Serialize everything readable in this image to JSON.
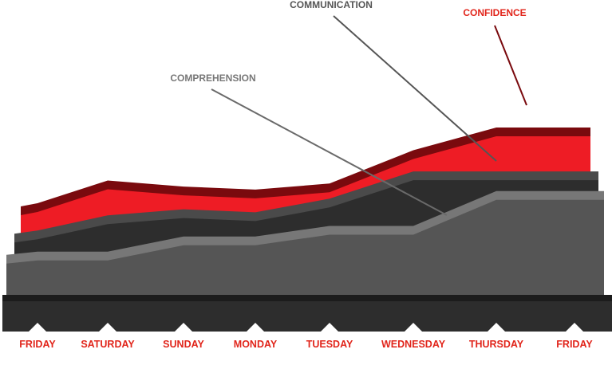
{
  "chart_data": {
    "type": "area",
    "categories": [
      "FRIDAY",
      "SATURDAY",
      "SUNDAY",
      "MONDAY",
      "TUESDAY",
      "WEDNESDAY",
      "THURSDAY",
      "FRIDAY"
    ],
    "series": [
      {
        "name": "CONFIDENCE",
        "color": "#ee1c25",
        "edge_color": "#7a0a0e",
        "values": [
          40,
          55,
          51,
          49,
          53,
          75,
          90,
          90
        ]
      },
      {
        "name": "COMMUNICATION",
        "color": "#2d2d2d",
        "edge_color": "#4a4a4a",
        "values": [
          22,
          32,
          36,
          34,
          43,
          61,
          61,
          61
        ]
      },
      {
        "name": "COMPREHENSION",
        "color": "#555555",
        "edge_color": "#777777",
        "values": [
          8,
          8,
          18,
          18,
          25,
          25,
          48,
          48
        ]
      }
    ],
    "ylim": [
      0,
      100
    ],
    "legend": "annotations",
    "grid": false,
    "tick_label_color": "#e1251b",
    "base_color": "#2d2d2d"
  }
}
